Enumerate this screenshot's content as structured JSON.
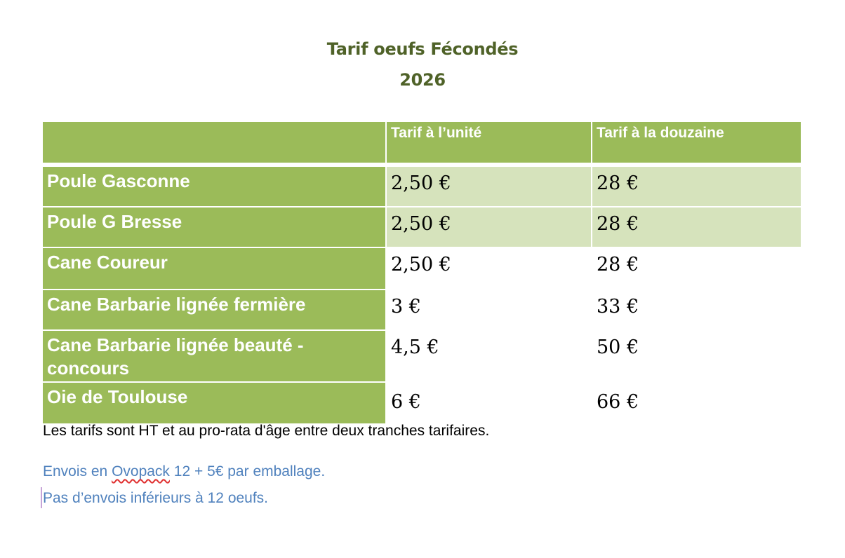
{
  "title": {
    "line1": "Tarif oeufs Fécondés",
    "line2": "2026"
  },
  "table": {
    "headers": [
      "",
      "Tarif à l’unité",
      "Tarif à la douzaine"
    ],
    "rows": [
      {
        "label": "Poule Gasconne",
        "unit": "2,50 €",
        "dozen": "28 €"
      },
      {
        "label": "Poule G Bresse",
        "unit": "2,50 €",
        "dozen": "28 €"
      },
      {
        "label": "Cane Coureur",
        "unit": "2,50 €",
        "dozen": "28 €"
      },
      {
        "label": "Cane Barbarie lignée fermière",
        "unit": "3 €",
        "dozen": "33 €"
      },
      {
        "label": "Cane Barbarie lignée beauté - concours",
        "unit": "4,5 €",
        "dozen": "50 €"
      },
      {
        "label": "Oie de Toulouse",
        "unit": "6 €",
        "dozen": "66 €"
      }
    ]
  },
  "notes": {
    "ht": "Les tarifs sont HT et au pro-rata d'âge entre deux tranches tarifaires.",
    "envoi_before": "Envois en ",
    "envoi_word": "Ovopack",
    "envoi_after": " 12 + 5€ par emballage.",
    "minimum": "Pas d’envois inférieurs à 12 oeufs."
  },
  "colors": {
    "title": "#4f6228",
    "header_green": "#9bbb59",
    "light_green": "#d6e3bc",
    "link_blue": "#4f81bd"
  }
}
